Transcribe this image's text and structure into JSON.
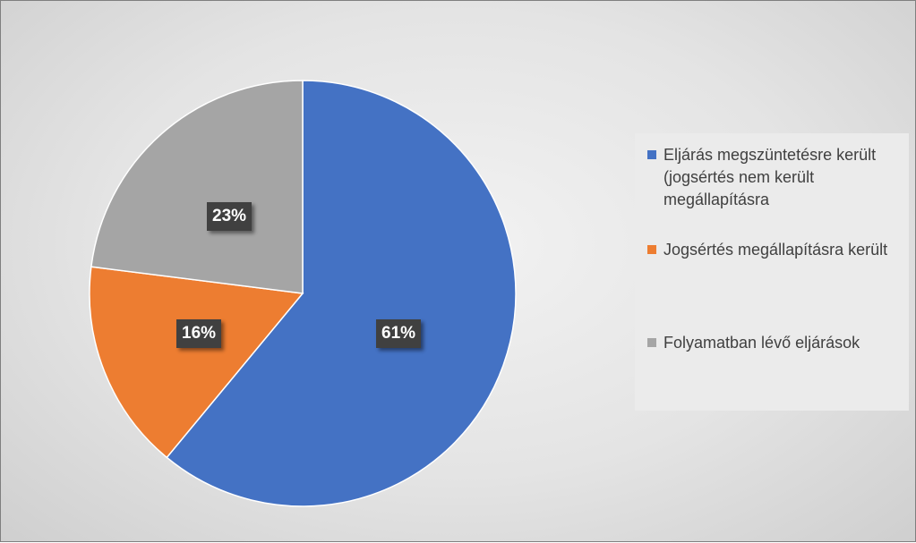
{
  "chart_data": {
    "type": "pie",
    "categories": [
      "Eljárás megszüntetésre került (jogsértés nem került megállapításra)",
      "Jogsértés megállapításra került",
      "Folyamatban lévő eljárások"
    ],
    "legend_display": [
      "Eljárás megszüntetésre került (jogsértés nem került megállapításra",
      "Jogsértés megállapításra került",
      "Folyamatban lévő eljárások"
    ],
    "values": [
      61,
      16,
      23
    ],
    "data_labels": [
      "61%",
      "16%",
      "23%"
    ],
    "colors": [
      "#4472c4",
      "#ed7d31",
      "#a5a5a5"
    ],
    "start_angle_deg": 0,
    "direction": "clockwise",
    "legend_position": "right",
    "title": ""
  }
}
